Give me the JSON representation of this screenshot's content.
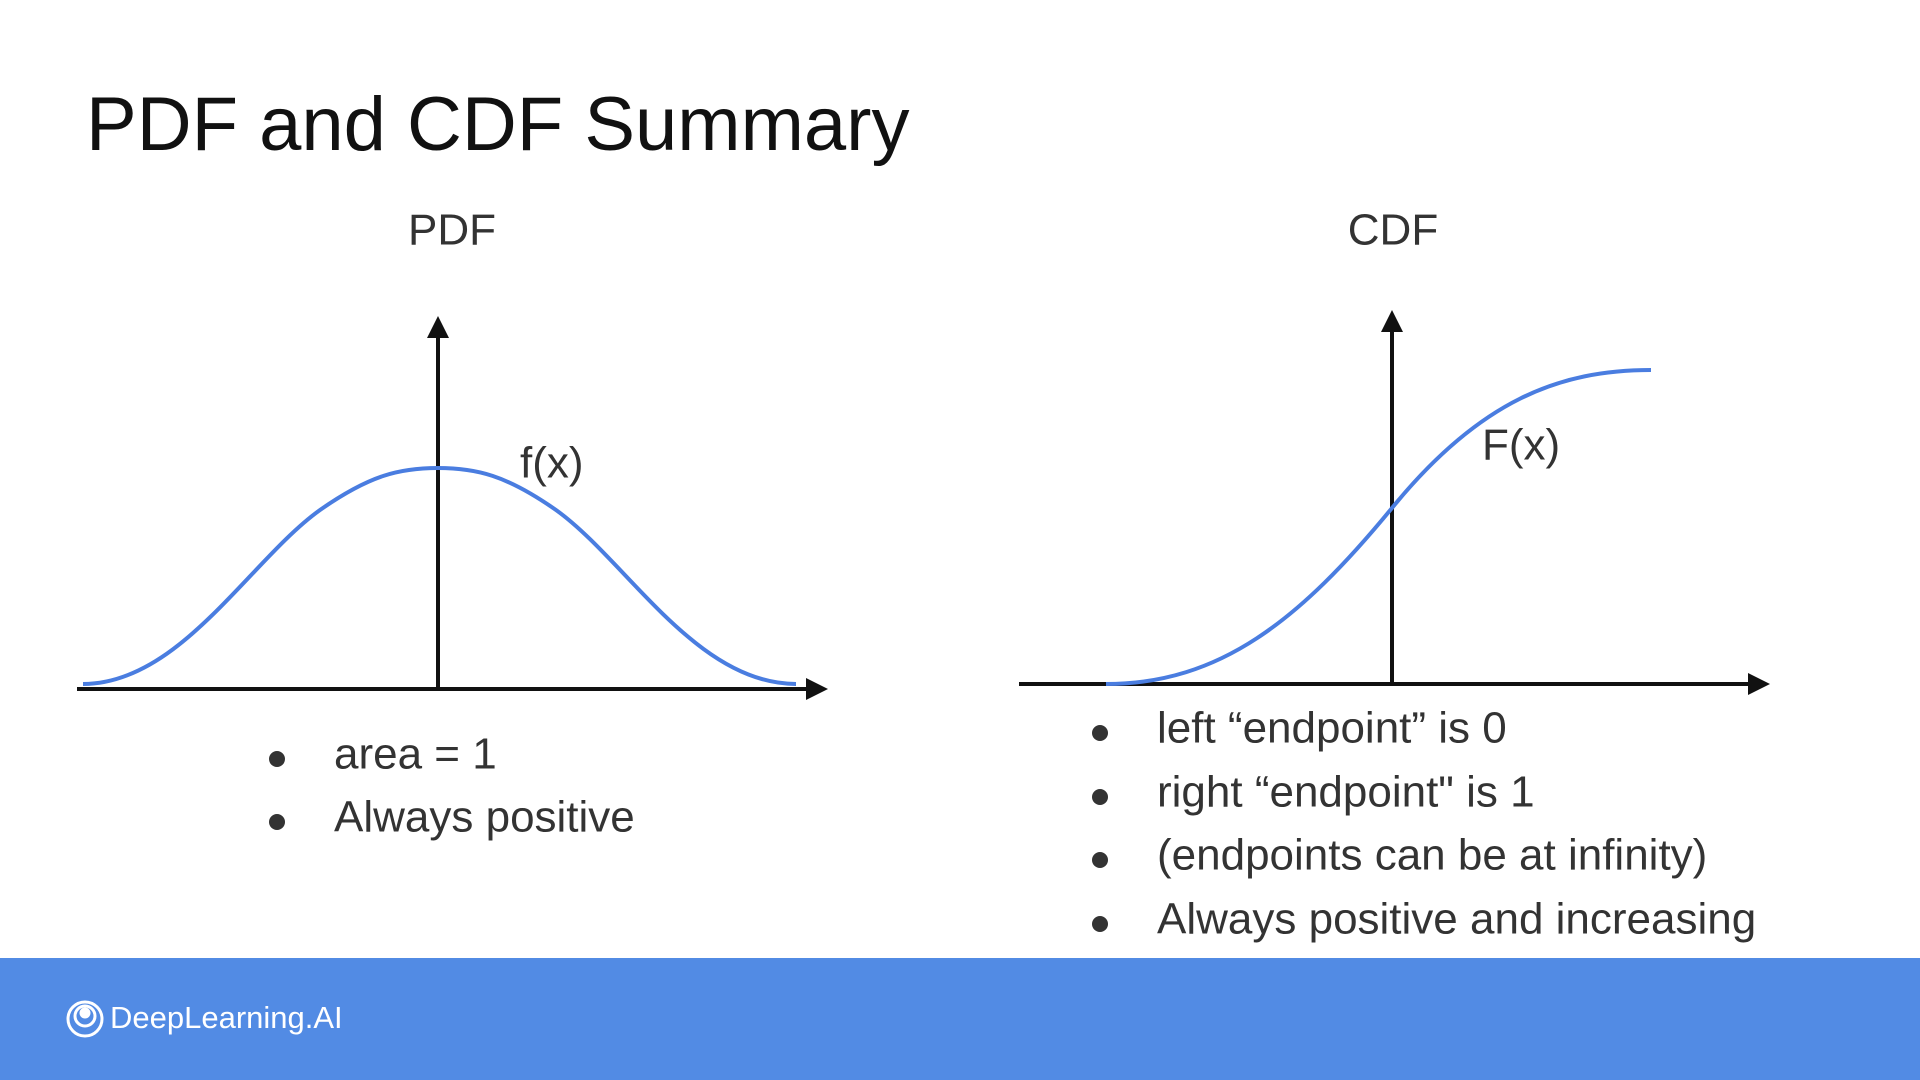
{
  "header": {
    "title": "PDF and CDF Summary"
  },
  "pdf": {
    "title": "PDF",
    "curve_label": "f(x)",
    "bullets": [
      "area = 1",
      "Always positive"
    ]
  },
  "cdf": {
    "title": "CDF",
    "curve_label": "F(x)",
    "bullets": [
      "left “endpoint” is 0",
      "right “endpoint\" is 1",
      "(endpoints can be at infinity)",
      "Always positive and increasing"
    ]
  },
  "footer": {
    "logo": "DeepLearning.AI"
  }
}
